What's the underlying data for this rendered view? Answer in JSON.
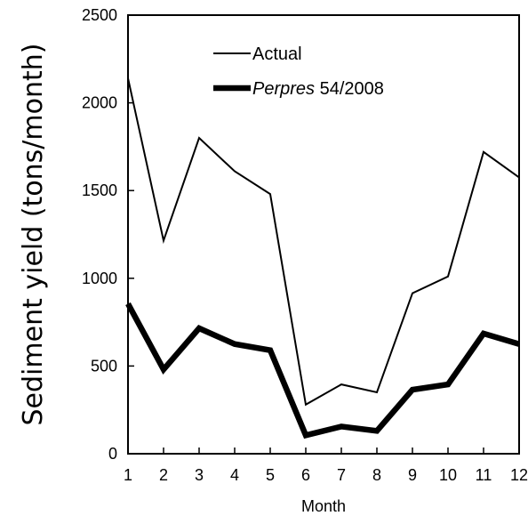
{
  "chart_data": {
    "type": "line",
    "title": "",
    "xlabel": "Month",
    "ylabel": "Sediment yield (tons/month)",
    "xlim": [
      1,
      12
    ],
    "ylim": [
      0,
      2500
    ],
    "x": [
      1,
      2,
      3,
      4,
      5,
      6,
      7,
      8,
      9,
      10,
      11,
      12
    ],
    "x_tick_labels": [
      "1",
      "2",
      "3",
      "4",
      "5",
      "6",
      "7",
      "8",
      "9",
      "10",
      "11",
      "12"
    ],
    "y_ticks": [
      0,
      500,
      1000,
      1500,
      2000,
      2500
    ],
    "y_tick_labels": [
      "0",
      "500",
      "1000",
      "1500",
      "2000",
      "2500"
    ],
    "grid": false,
    "legend_position": "top",
    "series": [
      {
        "name": "Actual",
        "legend_text": "Actual",
        "color": "#000000",
        "line_weight": "thin",
        "values": [
          2140,
          1215,
          1800,
          1610,
          1480,
          280,
          395,
          350,
          915,
          1010,
          1720,
          1575
        ]
      },
      {
        "name": "Perpres 54/2008",
        "legend_italic_part": "Perpres",
        "legend_normal_part": " 54/2008",
        "color": "#000000",
        "line_weight": "thick",
        "values": [
          855,
          480,
          715,
          625,
          590,
          105,
          155,
          130,
          365,
          395,
          685,
          625
        ]
      }
    ]
  }
}
